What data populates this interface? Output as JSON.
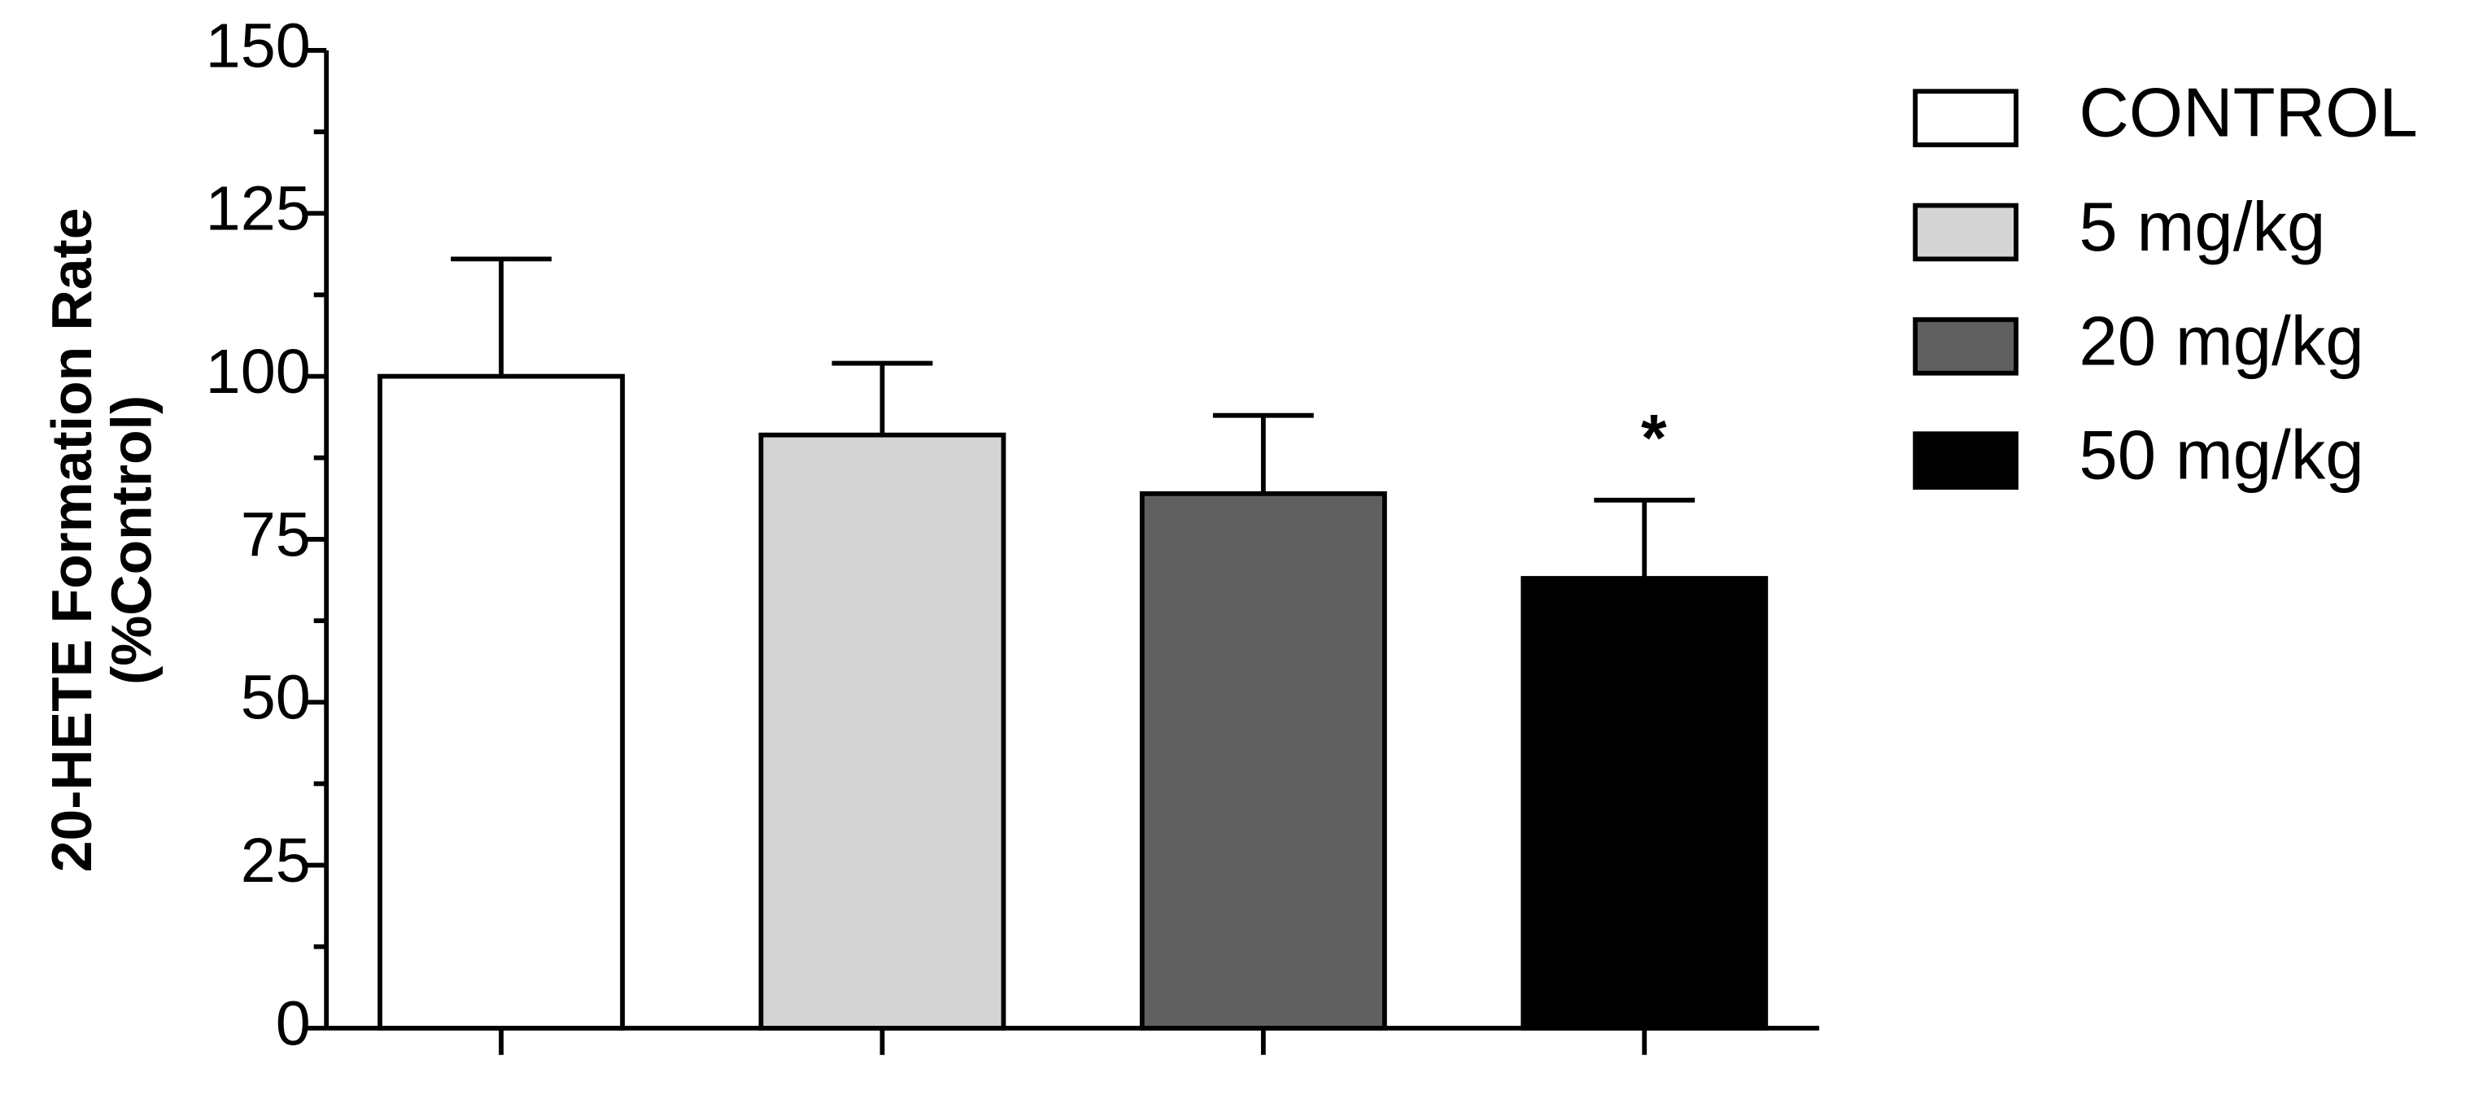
{
  "chart_data": {
    "type": "bar",
    "y_label": [
      "20-HETE  Formation Rate",
      "(%Control)"
    ],
    "categories": [
      null,
      null,
      null,
      null
    ],
    "series": [
      {
        "name": "CONTROL",
        "color": "#ffffff",
        "values": [
          100,
          null,
          null,
          null
        ],
        "errors": [
          18,
          null,
          null,
          null
        ]
      },
      {
        "name": "5 mg/kg",
        "color": "#d4d4d4",
        "values": [
          null,
          91,
          null,
          null
        ],
        "errors": [
          null,
          11,
          null,
          null
        ]
      },
      {
        "name": "20 mg/kg",
        "color": "#606060",
        "values": [
          null,
          null,
          82,
          null
        ],
        "errors": [
          null,
          null,
          12,
          null
        ]
      },
      {
        "name": "50 mg/kg",
        "color": "#000000",
        "values": [
          null,
          null,
          null,
          69
        ],
        "errors": [
          null,
          null,
          null,
          12
        ]
      }
    ],
    "annotation": "*",
    "ylim": [
      0,
      150
    ],
    "yticks": [
      0,
      25,
      50,
      75,
      100,
      125,
      150
    ],
    "minor_yticks": [
      12.5,
      37.5,
      62.5,
      87.5,
      112.5,
      137.5
    ],
    "legend": "right"
  }
}
